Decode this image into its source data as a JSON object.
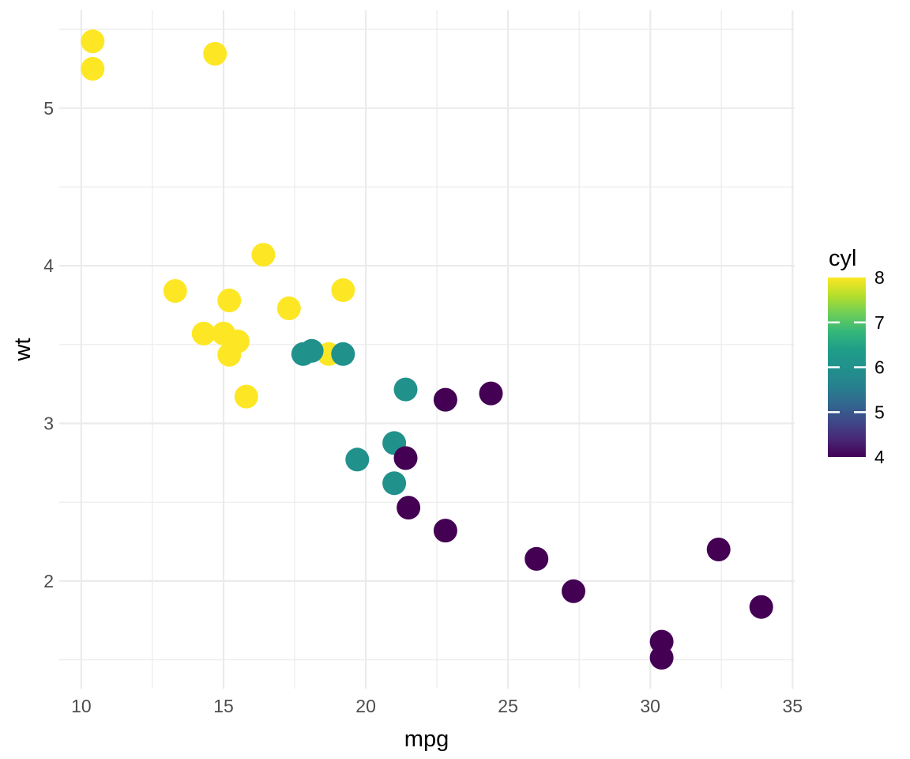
{
  "chart_data": {
    "type": "scatter",
    "title": "",
    "xlabel": "mpg",
    "ylabel": "wt",
    "xlim": [
      9.225,
      35.075
    ],
    "ylim": [
      1.317,
      5.621
    ],
    "x_major_ticks": [
      10,
      15,
      20,
      25,
      30,
      35
    ],
    "x_minor_ticks": [
      12.5,
      17.5,
      22.5,
      27.5,
      32.5
    ],
    "y_major_ticks": [
      2,
      3,
      4,
      5
    ],
    "y_minor_ticks": [
      1.5,
      2.5,
      3.5,
      4.5,
      5.5
    ],
    "grid": "on",
    "legend": {
      "title": "cyl",
      "position": "right",
      "style": "continuous-colorbar",
      "limits": [
        4,
        8
      ],
      "ticks": [
        4,
        5,
        6,
        7,
        8
      ],
      "inner_tick_values": [
        5,
        6,
        7
      ]
    },
    "colors": {
      "background": "#ffffff",
      "gridline": "#ebebeb",
      "axis_text": "#4d4d4d",
      "title_text": "#000000",
      "legend_tick": "#ffffff",
      "point_colors": {
        "4": "#440154",
        "6": "#21918c",
        "8": "#fde725"
      },
      "viridis_stops": [
        [
          0.0,
          "#440154"
        ],
        [
          0.1,
          "#482878"
        ],
        [
          0.2,
          "#3e4989"
        ],
        [
          0.3,
          "#31688e"
        ],
        [
          0.4,
          "#26828e"
        ],
        [
          0.5,
          "#21918c"
        ],
        [
          0.6,
          "#1f9e89"
        ],
        [
          0.7,
          "#35b779"
        ],
        [
          0.8,
          "#6ece58"
        ],
        [
          0.9,
          "#b5de2b"
        ],
        [
          1.0,
          "#fde725"
        ]
      ]
    },
    "points": [
      {
        "mpg": 21.0,
        "wt": 2.62,
        "cyl": 6
      },
      {
        "mpg": 21.0,
        "wt": 2.875,
        "cyl": 6
      },
      {
        "mpg": 22.8,
        "wt": 2.32,
        "cyl": 4
      },
      {
        "mpg": 21.4,
        "wt": 3.215,
        "cyl": 6
      },
      {
        "mpg": 18.7,
        "wt": 3.44,
        "cyl": 8
      },
      {
        "mpg": 18.1,
        "wt": 3.46,
        "cyl": 6
      },
      {
        "mpg": 14.3,
        "wt": 3.57,
        "cyl": 8
      },
      {
        "mpg": 24.4,
        "wt": 3.19,
        "cyl": 4
      },
      {
        "mpg": 22.8,
        "wt": 3.15,
        "cyl": 4
      },
      {
        "mpg": 19.2,
        "wt": 3.44,
        "cyl": 6
      },
      {
        "mpg": 17.8,
        "wt": 3.44,
        "cyl": 6
      },
      {
        "mpg": 16.4,
        "wt": 4.07,
        "cyl": 8
      },
      {
        "mpg": 17.3,
        "wt": 3.73,
        "cyl": 8
      },
      {
        "mpg": 15.2,
        "wt": 3.78,
        "cyl": 8
      },
      {
        "mpg": 10.4,
        "wt": 5.25,
        "cyl": 8
      },
      {
        "mpg": 10.4,
        "wt": 5.424,
        "cyl": 8
      },
      {
        "mpg": 14.7,
        "wt": 5.345,
        "cyl": 8
      },
      {
        "mpg": 32.4,
        "wt": 2.2,
        "cyl": 4
      },
      {
        "mpg": 30.4,
        "wt": 1.615,
        "cyl": 4
      },
      {
        "mpg": 33.9,
        "wt": 1.835,
        "cyl": 4
      },
      {
        "mpg": 21.5,
        "wt": 2.465,
        "cyl": 4
      },
      {
        "mpg": 15.5,
        "wt": 3.52,
        "cyl": 8
      },
      {
        "mpg": 15.2,
        "wt": 3.435,
        "cyl": 8
      },
      {
        "mpg": 13.3,
        "wt": 3.84,
        "cyl": 8
      },
      {
        "mpg": 19.2,
        "wt": 3.845,
        "cyl": 8
      },
      {
        "mpg": 27.3,
        "wt": 1.935,
        "cyl": 4
      },
      {
        "mpg": 26.0,
        "wt": 2.14,
        "cyl": 4
      },
      {
        "mpg": 30.4,
        "wt": 1.513,
        "cyl": 4
      },
      {
        "mpg": 15.8,
        "wt": 3.17,
        "cyl": 8
      },
      {
        "mpg": 19.7,
        "wt": 2.77,
        "cyl": 6
      },
      {
        "mpg": 15.0,
        "wt": 3.57,
        "cyl": 8
      },
      {
        "mpg": 21.4,
        "wt": 2.78,
        "cyl": 4
      }
    ]
  }
}
